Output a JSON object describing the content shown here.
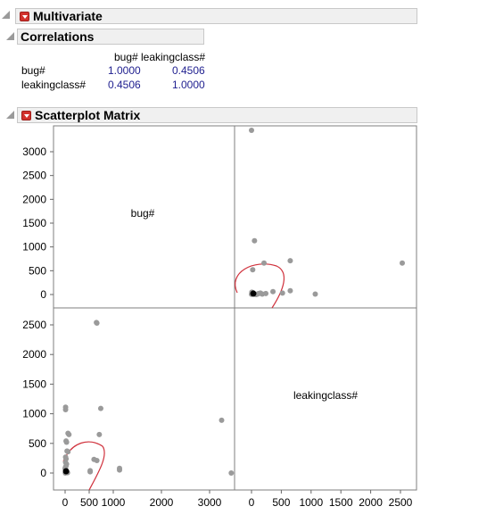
{
  "multivariate": {
    "title": "Multivariate"
  },
  "correlations": {
    "title": "Correlations",
    "columns": [
      "bug#",
      "leakingclass#"
    ],
    "rows": [
      {
        "label": "bug#",
        "values": [
          "1.0000",
          "0.4506"
        ]
      },
      {
        "label": "leakingclass#",
        "values": [
          "0.4506",
          "1.0000"
        ]
      }
    ]
  },
  "scatter": {
    "title": "Scatterplot Matrix"
  },
  "chart_data": {
    "type": "scatter",
    "variables": [
      "bug#",
      "leakingclass#"
    ],
    "diagonal_labels": [
      "bug#",
      "leakingclass#"
    ],
    "bug_axis": {
      "ticks": [
        0,
        500,
        1000,
        1500,
        2000,
        2500,
        3000
      ],
      "tick_labels": [
        "0",
        "500",
        "1000",
        "1500",
        "2000",
        "2500",
        "3000"
      ],
      "range": [
        -180,
        3620
      ]
    },
    "leak_axis": {
      "ticks": [
        0,
        500,
        1000,
        1500,
        2000,
        2500
      ],
      "tick_labels": [
        "0",
        "500",
        "1000",
        "1500",
        "2000",
        "2500"
      ],
      "range": [
        -140,
        2670
      ]
    },
    "bottom_left_x_ticks": {
      "ticks": [
        0,
        500,
        1000,
        2000,
        3000
      ],
      "tick_labels": [
        "0",
        "500",
        "1000",
        "2000",
        "3000"
      ]
    },
    "bottom_right_x_ticks": {
      "ticks": [
        0,
        500,
        1000,
        1500,
        2000,
        2500
      ],
      "tick_labels": [
        "0",
        "500",
        "1000",
        "1500",
        "2000",
        "2500"
      ]
    },
    "points": [
      {
        "leak": 0,
        "bug": 3450
      },
      {
        "leak": 50,
        "bug": 1130
      },
      {
        "leak": 650,
        "bug": 710
      },
      {
        "leak": 2530,
        "bug": 660
      },
      {
        "leak": 210,
        "bug": 660
      },
      {
        "leak": 20,
        "bug": 520
      },
      {
        "leak": 650,
        "bug": 80
      },
      {
        "leak": 360,
        "bug": 60
      },
      {
        "leak": 520,
        "bug": 30
      },
      {
        "leak": 1070,
        "bug": 10
      },
      {
        "leak": 5,
        "bug": 50
      },
      {
        "leak": 10,
        "bug": 40
      },
      {
        "leak": 20,
        "bug": 30
      },
      {
        "leak": 30,
        "bug": 20
      },
      {
        "leak": 40,
        "bug": 10
      },
      {
        "leak": 60,
        "bug": 5
      },
      {
        "leak": 80,
        "bug": 0
      },
      {
        "leak": 100,
        "bug": 10
      },
      {
        "leak": 120,
        "bug": 20
      },
      {
        "leak": 150,
        "bug": 30
      },
      {
        "leak": 180,
        "bug": 10
      },
      {
        "leak": 240,
        "bug": 20
      },
      {
        "leak": 0,
        "bug": 5
      },
      {
        "leak": 15,
        "bug": 15
      }
    ],
    "extra_points_bottom_left": [
      {
        "bug": 3250,
        "leak": 890
      },
      {
        "bug": 650,
        "leak": 2540
      },
      {
        "bug": 740,
        "leak": 1090
      },
      {
        "bug": 60,
        "leak": 670
      },
      {
        "bug": 20,
        "leak": 540
      },
      {
        "bug": 40,
        "leak": 370
      },
      {
        "bug": 10,
        "leak": 270
      },
      {
        "bug": 600,
        "leak": 230
      },
      {
        "bug": 520,
        "leak": 40
      },
      {
        "bug": 1130,
        "leak": 80
      },
      {
        "bug": 10,
        "leak": 1110
      }
    ],
    "dense_point": {
      "leak": 30,
      "bug": 20
    },
    "ellipse": {
      "center": {
        "leak": 200,
        "bug": 200
      },
      "note": "density ellipse, red, opening toward origin"
    },
    "colors": {
      "points": "#9a9a9a",
      "dense_point": "#000000",
      "ellipse": "#d0313c",
      "frame": "#7f7f7f"
    }
  }
}
